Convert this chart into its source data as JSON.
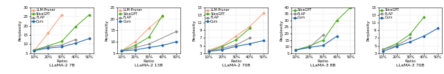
{
  "x_labels": [
    "10%",
    "20%",
    "30%",
    "40%",
    "50%"
  ],
  "ylabel": "Perplexity",
  "subplots": [
    {
      "title": "LLaMA-2 7B",
      "ylim": [
        5,
        30
      ],
      "yticks": [
        5,
        10,
        15,
        20,
        25,
        30
      ],
      "legend_names": [
        "LLM-Pruner",
        "SliceGPT",
        "FLAP",
        "Ours"
      ],
      "series": [
        {
          "name": "LLM-Pruner",
          "color": "#f5a482",
          "marker": "o",
          "values": [
            6.5,
            16.0,
            26.0,
            null,
            null
          ]
        },
        {
          "name": "SliceGPT",
          "color": "#4dac26",
          "marker": "o",
          "values": [
            6.8,
            9.0,
            11.5,
            19.5,
            26.0
          ]
        },
        {
          "name": "FLAP",
          "color": "#8c8c8c",
          "marker": "o",
          "values": [
            6.5,
            8.5,
            9.5,
            12.5,
            null
          ]
        },
        {
          "name": "Ours",
          "color": "#2166ac",
          "marker": "o",
          "values": [
            6.5,
            7.8,
            8.5,
            10.5,
            13.0
          ]
        }
      ]
    },
    {
      "title": "LLaMA-2 13B",
      "ylim": [
        5,
        25
      ],
      "yticks": [
        5,
        10,
        15,
        20,
        25
      ],
      "legend_names": [
        "LLM-Pruner",
        "SliceGPT",
        "FLAP",
        "Ours"
      ],
      "series": [
        {
          "name": "LLM-Pruner",
          "color": "#f5a482",
          "marker": "o",
          "values": [
            6.0,
            10.0,
            16.0,
            21.0,
            null
          ]
        },
        {
          "name": "SliceGPT",
          "color": "#4dac26",
          "marker": "o",
          "values": [
            6.0,
            8.5,
            12.0,
            21.5,
            null
          ]
        },
        {
          "name": "FLAP",
          "color": "#8c8c8c",
          "marker": "o",
          "values": [
            6.0,
            7.5,
            9.0,
            null,
            14.5
          ]
        },
        {
          "name": "Ours",
          "color": "#2166ac",
          "marker": "o",
          "values": [
            6.0,
            6.5,
            7.5,
            8.5,
            10.0
          ]
        }
      ]
    },
    {
      "title": "LLaMA-2 70B",
      "ylim": [
        3,
        15
      ],
      "yticks": [
        3,
        5,
        7,
        9,
        11,
        13,
        15
      ],
      "legend_names": [
        "LLM-Pruner",
        "SliceGPT",
        "FLAP",
        "Ours"
      ],
      "series": [
        {
          "name": "LLM-Pruner",
          "color": "#f5a482",
          "marker": "o",
          "values": [
            3.8,
            5.0,
            7.5,
            10.0,
            13.5
          ]
        },
        {
          "name": "SliceGPT",
          "color": "#4dac26",
          "marker": "o",
          "values": [
            3.5,
            4.8,
            6.5,
            9.5,
            null
          ]
        },
        {
          "name": "FLAP",
          "color": "#8c8c8c",
          "marker": "o",
          "values": [
            3.5,
            4.3,
            5.2,
            7.0,
            null
          ]
        },
        {
          "name": "Ours",
          "color": "#2166ac",
          "marker": "o",
          "values": [
            3.5,
            3.9,
            4.8,
            5.5,
            6.3
          ]
        }
      ]
    },
    {
      "title": "LLaMA-3 8B",
      "ylim": [
        5,
        40
      ],
      "yticks": [
        5,
        10,
        15,
        20,
        25,
        30,
        35,
        40
      ],
      "legend_names": [
        "SliceGPT",
        "FLAP",
        "Ours"
      ],
      "series": [
        {
          "name": "SliceGPT",
          "color": "#4dac26",
          "marker": "o",
          "values": [
            7.5,
            10.5,
            15.0,
            30.0,
            40.0
          ]
        },
        {
          "name": "FLAP",
          "color": "#8c8c8c",
          "marker": "o",
          "values": [
            7.5,
            9.5,
            19.0,
            null,
            null
          ]
        },
        {
          "name": "Ours",
          "color": "#2166ac",
          "marker": "o",
          "values": [
            7.5,
            9.5,
            11.0,
            18.0,
            null
          ]
        }
      ]
    },
    {
      "title": "LLaMA-3 70B",
      "ylim": [
        3,
        15
      ],
      "yticks": [
        3,
        5,
        7,
        9,
        11,
        13,
        15
      ],
      "legend_names": [
        "SliceGPT",
        "FLAP",
        "Ours"
      ],
      "series": [
        {
          "name": "SliceGPT",
          "color": "#4dac26",
          "marker": "o",
          "values": [
            4.0,
            5.5,
            8.0,
            12.5,
            null
          ]
        },
        {
          "name": "FLAP",
          "color": "#8c8c8c",
          "marker": "o",
          "values": [
            4.0,
            5.0,
            7.0,
            null,
            null
          ]
        },
        {
          "name": "Ours",
          "color": "#2166ac",
          "marker": "o",
          "values": [
            3.5,
            4.8,
            6.0,
            7.5,
            9.5
          ]
        }
      ]
    }
  ],
  "figsize": [
    6.4,
    1.08
  ],
  "dpi": 100
}
